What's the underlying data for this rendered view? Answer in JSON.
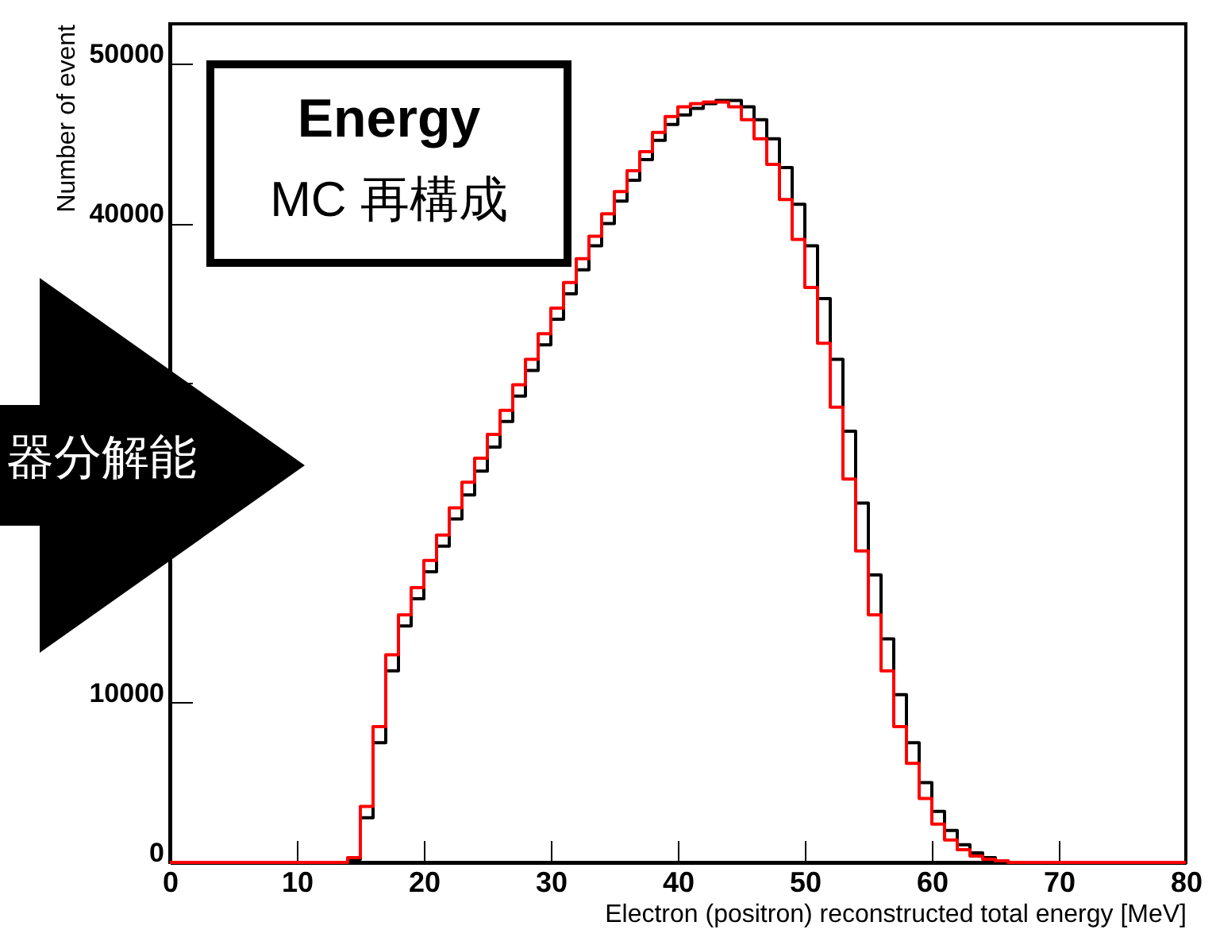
{
  "chart_data": {
    "type": "histogram",
    "xlabel": "Electron (positron) reconstructed total energy [MeV]",
    "ylabel": "Number of event",
    "xlim": [
      0,
      80
    ],
    "xticks": [
      0,
      10,
      20,
      30,
      40,
      50,
      60,
      70,
      80
    ],
    "ylim": [
      0,
      52500
    ],
    "yticks": [
      0,
      10000,
      {
        "value": 20000,
        "label": null
      },
      {
        "value": 30000,
        "label": null
      },
      40000,
      50000
    ],
    "bins": [
      0,
      1,
      2,
      3,
      4,
      5,
      6,
      7,
      8,
      9,
      10,
      11,
      12,
      13,
      14,
      15,
      16,
      17,
      18,
      19,
      20,
      21,
      22,
      23,
      24,
      25,
      26,
      27,
      28,
      29,
      30,
      31,
      32,
      33,
      34,
      35,
      36,
      37,
      38,
      39,
      40,
      41,
      42,
      43,
      44,
      45,
      46,
      47,
      48,
      49,
      50,
      51,
      52,
      53,
      54,
      55,
      56,
      57,
      58,
      59,
      60,
      61,
      62,
      63,
      64,
      65,
      66,
      67,
      68,
      69,
      70,
      71,
      72,
      73,
      74,
      75,
      76,
      77,
      78,
      79,
      80
    ],
    "series": [
      {
        "color": "#000000",
        "values": [
          0,
          0,
          0,
          0,
          0,
          0,
          0,
          0,
          0,
          0,
          0,
          0,
          0,
          0,
          200,
          2800,
          7500,
          12000,
          14800,
          16500,
          18200,
          19800,
          21500,
          23000,
          24500,
          26000,
          27600,
          29200,
          30800,
          32400,
          34000,
          35600,
          37100,
          38600,
          40000,
          41400,
          42700,
          44000,
          45200,
          46200,
          46800,
          47200,
          47500,
          47700,
          47700,
          47300,
          46500,
          45300,
          43500,
          41200,
          38600,
          35300,
          31500,
          27000,
          22500,
          18000,
          14000,
          10500,
          7500,
          5000,
          3200,
          2000,
          1100,
          600,
          300,
          100,
          0,
          0,
          0,
          0,
          0,
          0,
          0,
          0,
          0,
          0,
          0,
          0,
          0,
          0
        ]
      },
      {
        "color": "#ff0000",
        "values": [
          0,
          0,
          0,
          0,
          0,
          0,
          0,
          0,
          0,
          0,
          0,
          0,
          0,
          0,
          300,
          3500,
          8500,
          13000,
          15500,
          17200,
          18900,
          20500,
          22200,
          23800,
          25300,
          26800,
          28300,
          29900,
          31500,
          33100,
          34700,
          36300,
          37800,
          39200,
          40600,
          42000,
          43300,
          44500,
          45700,
          46700,
          47300,
          47500,
          47600,
          47600,
          47300,
          46500,
          45300,
          43700,
          41500,
          39000,
          36000,
          32500,
          28500,
          24000,
          19500,
          15500,
          12000,
          8500,
          6200,
          4000,
          2400,
          1400,
          800,
          400,
          200,
          100,
          0,
          0,
          0,
          0,
          0,
          0,
          0,
          0,
          0,
          0,
          0,
          0,
          0,
          0
        ]
      }
    ],
    "annotations": [
      "Energy",
      "MC 再構成",
      "器分解能"
    ]
  }
}
